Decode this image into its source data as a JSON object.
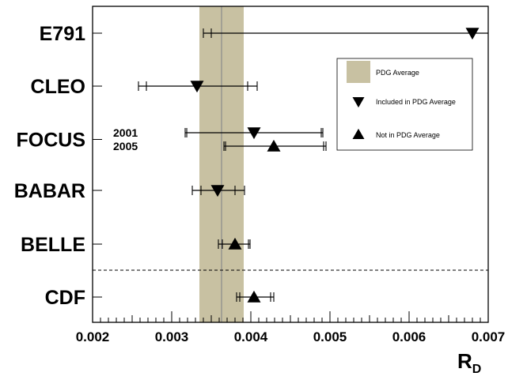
{
  "chart_data": {
    "type": "scatter",
    "xlabel": "R",
    "xlabel_subscript": "D",
    "xlim": [
      0.002,
      0.007
    ],
    "x_ticks": [
      "0.002",
      "0.003",
      "0.004",
      "0.005",
      "0.006",
      "0.007"
    ],
    "pdg_average": {
      "value": 0.00363,
      "band": [
        0.00335,
        0.00391
      ]
    },
    "experiments": [
      {
        "name": "E791",
        "points": [
          {
            "value": 0.0068,
            "err_low": 0.0034,
            "err_high": 0.0034,
            "stat_low": 0.0033,
            "stat_high": 0.0034,
            "included": true
          }
        ]
      },
      {
        "name": "CLEO",
        "points": [
          {
            "value": 0.00332,
            "err_low": 0.00074,
            "err_high": 0.00076,
            "stat_low": 0.00064,
            "stat_high": 0.00064,
            "included": true
          }
        ]
      },
      {
        "name": "FOCUS",
        "points": [
          {
            "year": "2001",
            "value": 0.00404,
            "err_low": 0.00087,
            "err_high": 0.00087,
            "stat_low": 0.00085,
            "stat_high": 0.00085,
            "included": true
          },
          {
            "year": "2005",
            "value": 0.00429,
            "err_low": 0.00063,
            "err_high": 0.00066,
            "stat_low": 0.00061,
            "stat_high": 0.00063,
            "included": false
          }
        ]
      },
      {
        "name": "BABAR",
        "points": [
          {
            "value": 0.00358,
            "err_low": 0.00032,
            "err_high": 0.00034,
            "stat_low": 0.00021,
            "stat_high": 0.00022,
            "included": true
          }
        ]
      },
      {
        "name": "BELLE",
        "points": [
          {
            "value": 0.0038,
            "err_low": 0.00021,
            "err_high": 0.00019,
            "stat_low": 0.00016,
            "stat_high": 0.00017,
            "included": false
          }
        ]
      },
      {
        "name": "CDF",
        "points": [
          {
            "value": 0.00404,
            "err_low": 0.00022,
            "err_high": 0.00025,
            "stat_low": 0.00018,
            "stat_high": 0.00021,
            "included": false
          }
        ]
      }
    ],
    "separator_after": "BELLE",
    "legend": {
      "position": "right",
      "entries": [
        {
          "key": "band",
          "label": "PDG Average",
          "color": "#c8c1a2"
        },
        {
          "key": "down",
          "label": "Included in PDG Average"
        },
        {
          "key": "up",
          "label": "Not in PDG Average"
        }
      ]
    },
    "colors": {
      "band": "#c8c1a2",
      "band_line": "#8a8a8a",
      "marker": "#000000"
    }
  }
}
